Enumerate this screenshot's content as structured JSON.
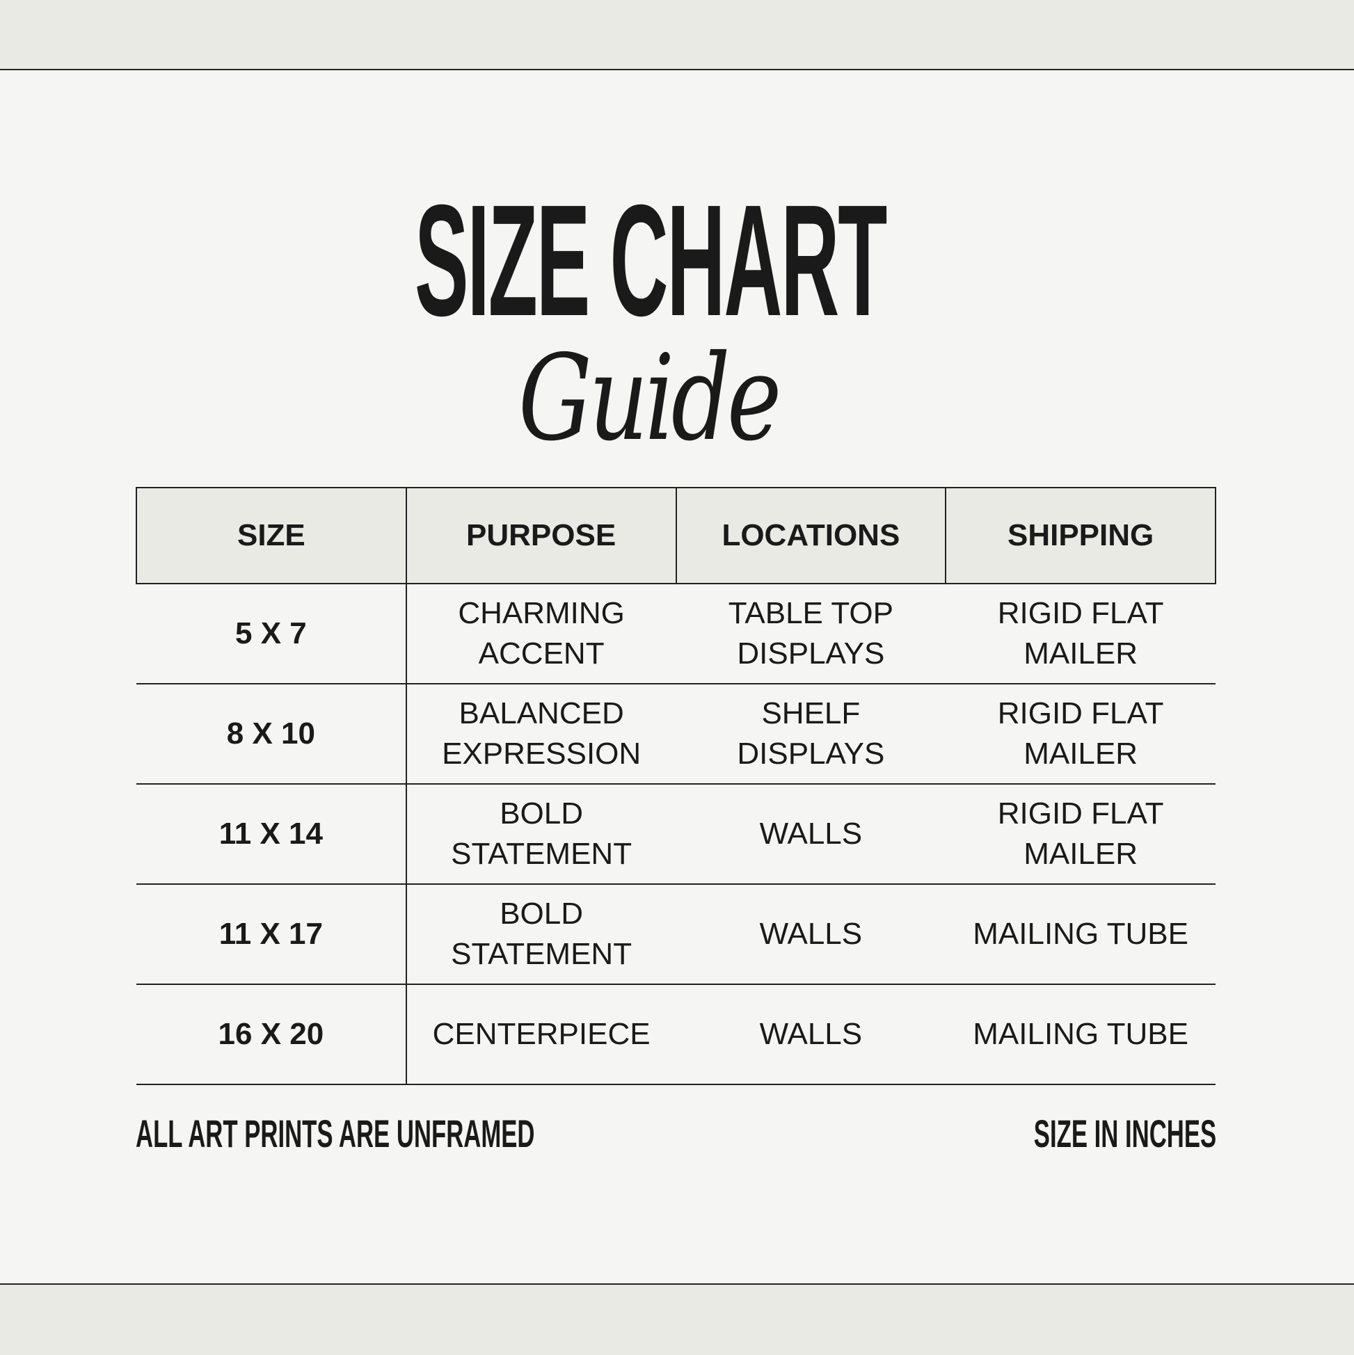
{
  "title": {
    "main": "SIZE CHART",
    "script": "Guide"
  },
  "table": {
    "headers": [
      "SIZE",
      "PURPOSE",
      "LOCATIONS",
      "SHIPPING"
    ],
    "rows": [
      {
        "size": "5 X 7",
        "purpose": [
          "CHARMING",
          "ACCENT"
        ],
        "location": [
          "TABLE TOP",
          "DISPLAYS"
        ],
        "shipping": [
          "RIGID FLAT",
          "MAILER"
        ]
      },
      {
        "size": "8 X 10",
        "purpose": [
          "BALANCED",
          "EXPRESSION"
        ],
        "location": [
          "SHELF",
          "DISPLAYS"
        ],
        "shipping": [
          "RIGID FLAT",
          "MAILER"
        ]
      },
      {
        "size": "11 X 14",
        "purpose": [
          "BOLD",
          "STATEMENT"
        ],
        "location": [
          "WALLS"
        ],
        "shipping": [
          "RIGID FLAT",
          "MAILER"
        ]
      },
      {
        "size": "11 X 17",
        "purpose": [
          "BOLD",
          "STATEMENT"
        ],
        "location": [
          "WALLS"
        ],
        "shipping": [
          "MAILING TUBE"
        ]
      },
      {
        "size": "16 X 20",
        "purpose": [
          "CENTERPIECE"
        ],
        "location": [
          "WALLS"
        ],
        "shipping": [
          "MAILING TUBE"
        ]
      }
    ]
  },
  "footer": {
    "left": "ALL ART PRINTS ARE UNFRAMED",
    "right": "SIZE IN INCHES"
  },
  "colors": {
    "background": "#f5f5f3",
    "header_fill": "#eaeae5",
    "ink": "#1a1a1a"
  }
}
